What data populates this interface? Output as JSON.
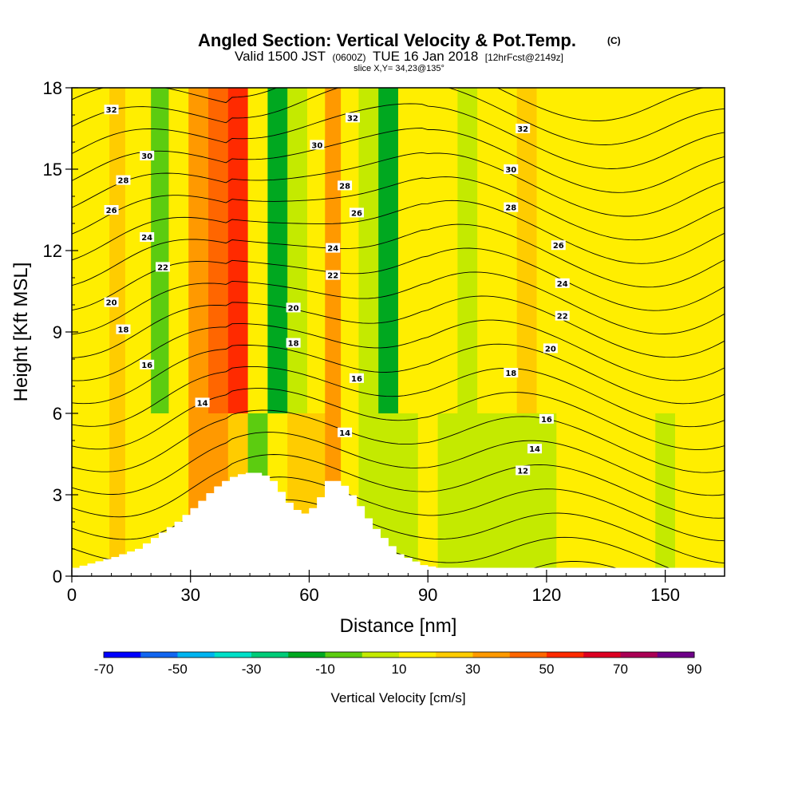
{
  "chart_data": {
    "type": "heatmap",
    "title": "Angled Section: Vertical Velocity & Pot.Temp.",
    "title_suffix": "(C)",
    "subtitle": {
      "part1": "Valid 1500 JST",
      "part2": "(0600Z)",
      "part3": "TUE 16 Jan 2018",
      "part4": "[12hrFcst@2149z]"
    },
    "slice_info": "slice X,Y= 34,23@135°",
    "xlabel": "Distance [nm]",
    "ylabel": "Height [Kft MSL]",
    "xlim": [
      0,
      165
    ],
    "ylim": [
      0,
      18
    ],
    "x_ticks": [
      0,
      30,
      60,
      90,
      120,
      150
    ],
    "y_ticks": [
      0,
      3,
      6,
      9,
      12,
      15,
      18
    ],
    "colorbar": {
      "label": "Vertical Velocity [cm/s]",
      "tick_labels": [
        -70,
        -50,
        -30,
        -10,
        10,
        30,
        50,
        70,
        90
      ],
      "colors": [
        "#0000ff",
        "#1266f0",
        "#00b4f0",
        "#00e0c8",
        "#00cc78",
        "#00a820",
        "#5ccc10",
        "#c4ea00",
        "#ffee00",
        "#ffcc00",
        "#ff9900",
        "#ff6600",
        "#ff2a00",
        "#dd0022",
        "#aa0055",
        "#6e0088"
      ]
    },
    "columns": {
      "x": [
        0,
        7,
        12,
        15,
        18,
        22,
        27,
        32,
        37,
        42,
        47,
        52,
        57,
        62,
        66,
        70,
        75,
        80,
        85,
        90,
        95,
        100,
        105,
        110,
        115,
        120,
        125,
        130,
        135,
        140,
        145,
        150,
        155,
        160,
        165
      ],
      "w_upper_cm_s": [
        8,
        8,
        12,
        5,
        4,
        -20,
        5,
        25,
        35,
        40,
        3,
        -25,
        -5,
        5,
        20,
        5,
        -5,
        -25,
        5,
        8,
        5,
        -5,
        5,
        8,
        15,
        8,
        5,
        8,
        8,
        8,
        8,
        8,
        8,
        8,
        8
      ],
      "w_lower_cm_s": [
        5,
        8,
        10,
        8,
        5,
        5,
        8,
        25,
        20,
        15,
        -15,
        5,
        15,
        15,
        20,
        8,
        -5,
        -5,
        -5,
        5,
        -5,
        -5,
        -5,
        -5,
        -5,
        -5,
        5,
        5,
        5,
        5,
        5,
        -5,
        5,
        5,
        5
      ]
    },
    "terrain": {
      "x": [
        0,
        10,
        16,
        19,
        22,
        26,
        30,
        33,
        35,
        39,
        43,
        47,
        50,
        52,
        55,
        58,
        61,
        64,
        67,
        71,
        75,
        78,
        80,
        82,
        85,
        88,
        92,
        100,
        165
      ],
      "height_kft": [
        0.3,
        0.7,
        1.0,
        1.3,
        1.6,
        2.0,
        2.5,
        2.9,
        3.2,
        3.6,
        3.8,
        3.8,
        3.5,
        3.1,
        2.5,
        2.3,
        2.6,
        3.5,
        3.5,
        2.8,
        1.9,
        1.4,
        1.1,
        0.8,
        0.6,
        0.4,
        0.3,
        0.3,
        0.3
      ]
    },
    "contour_levels_c": [
      12,
      13,
      14,
      15,
      16,
      17,
      18,
      19,
      20,
      21,
      22,
      23,
      24,
      25,
      26,
      27,
      28,
      29,
      30,
      31,
      32,
      33
    ],
    "contour_labels": [
      {
        "text": "32",
        "x": 10,
        "y": 17.2
      },
      {
        "text": "30",
        "x": 19,
        "y": 15.5
      },
      {
        "text": "28",
        "x": 13,
        "y": 14.6
      },
      {
        "text": "26",
        "x": 10,
        "y": 13.5
      },
      {
        "text": "24",
        "x": 19,
        "y": 12.5
      },
      {
        "text": "22",
        "x": 23,
        "y": 11.4
      },
      {
        "text": "20",
        "x": 10,
        "y": 10.1
      },
      {
        "text": "18",
        "x": 13,
        "y": 9.1
      },
      {
        "text": "16",
        "x": 19,
        "y": 7.8
      },
      {
        "text": "14",
        "x": 33,
        "y": 6.4
      },
      {
        "text": "32",
        "x": 71,
        "y": 16.9
      },
      {
        "text": "30",
        "x": 62,
        "y": 15.9
      },
      {
        "text": "28",
        "x": 69,
        "y": 14.4
      },
      {
        "text": "26",
        "x": 72,
        "y": 13.4
      },
      {
        "text": "24",
        "x": 66,
        "y": 12.1
      },
      {
        "text": "22",
        "x": 66,
        "y": 11.1
      },
      {
        "text": "20",
        "x": 56,
        "y": 9.9
      },
      {
        "text": "18",
        "x": 56,
        "y": 8.6
      },
      {
        "text": "16",
        "x": 72,
        "y": 7.3
      },
      {
        "text": "14",
        "x": 69,
        "y": 5.3
      },
      {
        "text": "32",
        "x": 114,
        "y": 16.5
      },
      {
        "text": "30",
        "x": 111,
        "y": 15.0
      },
      {
        "text": "28",
        "x": 111,
        "y": 13.6
      },
      {
        "text": "26",
        "x": 123,
        "y": 12.2
      },
      {
        "text": "24",
        "x": 124,
        "y": 10.8
      },
      {
        "text": "22",
        "x": 124,
        "y": 9.6
      },
      {
        "text": "20",
        "x": 121,
        "y": 8.4
      },
      {
        "text": "18",
        "x": 111,
        "y": 7.5
      },
      {
        "text": "16",
        "x": 120,
        "y": 5.8
      },
      {
        "text": "14",
        "x": 117,
        "y": 4.7
      },
      {
        "text": "12",
        "x": 114,
        "y": 3.9
      }
    ]
  }
}
